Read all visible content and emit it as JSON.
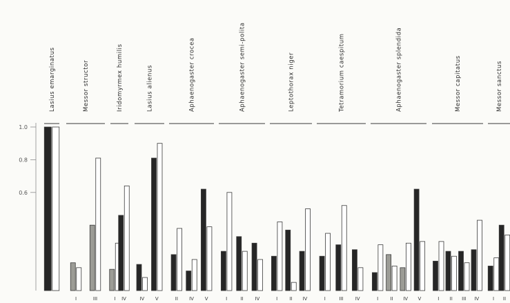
{
  "chart_data": {
    "type": "bar",
    "y_ticks": [
      "1.0",
      "0.8",
      "0.6"
    ],
    "ylim": [
      0,
      1.0
    ],
    "groups": [
      {
        "species": "Lasius emarginatus",
        "bars": [
          {
            "label": "",
            "values": [
              1.0,
              1.0
            ],
            "shade": [
              "dark",
              "white"
            ]
          }
        ]
      },
      {
        "species": "Messor structor",
        "bars": [
          {
            "label": "I",
            "values": [
              0.17,
              0.14
            ],
            "shade": [
              "grey",
              "white"
            ]
          },
          {
            "label": "III",
            "values": [
              0.4,
              0.81
            ],
            "shade": [
              "grey",
              "white"
            ]
          }
        ]
      },
      {
        "species": "Iridomyrmex humilis",
        "bars": [
          {
            "label": "I",
            "values": [
              0.13,
              0.29
            ],
            "shade": [
              "grey",
              "white"
            ]
          },
          {
            "label": "IV",
            "values": [
              0.46,
              0.64
            ],
            "shade": [
              "dark",
              "white"
            ]
          }
        ]
      },
      {
        "species": "Lasius alienus",
        "bars": [
          {
            "label": "IV",
            "values": [
              0.16,
              0.08
            ],
            "shade": [
              "dark",
              "white"
            ]
          },
          {
            "label": "V",
            "values": [
              0.81,
              0.9
            ],
            "shade": [
              "dark",
              "white"
            ]
          }
        ]
      },
      {
        "species": "Aphaenogaster crocea",
        "bars": [
          {
            "label": "II",
            "values": [
              0.22,
              0.38
            ],
            "shade": [
              "dark",
              "white"
            ]
          },
          {
            "label": "IV",
            "values": [
              0.12,
              0.19
            ],
            "shade": [
              "dark",
              "white"
            ]
          },
          {
            "label": "V",
            "values": [
              0.62,
              0.39
            ],
            "shade": [
              "dark",
              "white"
            ]
          }
        ]
      },
      {
        "species": "Aphaenogaster semi-polita",
        "bars": [
          {
            "label": "I",
            "values": [
              0.24,
              0.6
            ],
            "shade": [
              "dark",
              "white"
            ]
          },
          {
            "label": "II",
            "values": [
              0.33,
              0.24
            ],
            "shade": [
              "dark",
              "white"
            ]
          },
          {
            "label": "IV",
            "values": [
              0.29,
              0.19
            ],
            "shade": [
              "dark",
              "white"
            ]
          }
        ]
      },
      {
        "species": "Leptothorax niger",
        "bars": [
          {
            "label": "I",
            "values": [
              0.21,
              0.42
            ],
            "shade": [
              "dark",
              "white"
            ]
          },
          {
            "label": "II",
            "values": [
              0.37,
              0.05
            ],
            "shade": [
              "dark",
              "white"
            ]
          },
          {
            "label": "IV",
            "values": [
              0.24,
              0.5
            ],
            "shade": [
              "dark",
              "white"
            ]
          }
        ]
      },
      {
        "species": "Tetramorium caespitum",
        "bars": [
          {
            "label": "I",
            "values": [
              0.21,
              0.35
            ],
            "shade": [
              "dark",
              "white"
            ]
          },
          {
            "label": "III",
            "values": [
              0.28,
              0.52
            ],
            "shade": [
              "dark",
              "white"
            ]
          },
          {
            "label": "IV",
            "values": [
              0.25,
              0.14
            ],
            "shade": [
              "dark",
              "white"
            ]
          }
        ]
      },
      {
        "species": "Aphaenogaster splendida",
        "bars": [
          {
            "label": "I",
            "values": [
              0.11,
              0.28
            ],
            "shade": [
              "dark",
              "white"
            ]
          },
          {
            "label": "II",
            "values": [
              0.22,
              0.15
            ],
            "shade": [
              "grey",
              "white"
            ]
          },
          {
            "label": "IV",
            "values": [
              0.14,
              0.29
            ],
            "shade": [
              "grey",
              "white"
            ]
          },
          {
            "label": "V",
            "values": [
              0.62,
              0.3
            ],
            "shade": [
              "dark",
              "white"
            ]
          }
        ]
      },
      {
        "species": "Messor capitatus",
        "bars": [
          {
            "label": "I",
            "values": [
              0.18,
              0.3
            ],
            "shade": [
              "dark",
              "white"
            ]
          },
          {
            "label": "II",
            "values": [
              0.24,
              0.21
            ],
            "shade": [
              "dark",
              "white"
            ]
          },
          {
            "label": "III",
            "values": [
              0.24,
              0.17
            ],
            "shade": [
              "dark",
              "white"
            ]
          },
          {
            "label": "IV",
            "values": [
              0.25,
              0.43
            ],
            "shade": [
              "dark",
              "white"
            ]
          }
        ]
      },
      {
        "species": "Messor sanctus",
        "bars": [
          {
            "label": "I",
            "values": [
              0.15,
              0.2
            ],
            "shade": [
              "dark",
              "white"
            ]
          },
          {
            "label": "II",
            "values": [
              0.4,
              0.34
            ],
            "shade": [
              "dark",
              "white"
            ]
          }
        ]
      }
    ],
    "colors": {
      "dark": "#262626",
      "grey": "#9c9c96",
      "white": "#ffffff"
    }
  }
}
